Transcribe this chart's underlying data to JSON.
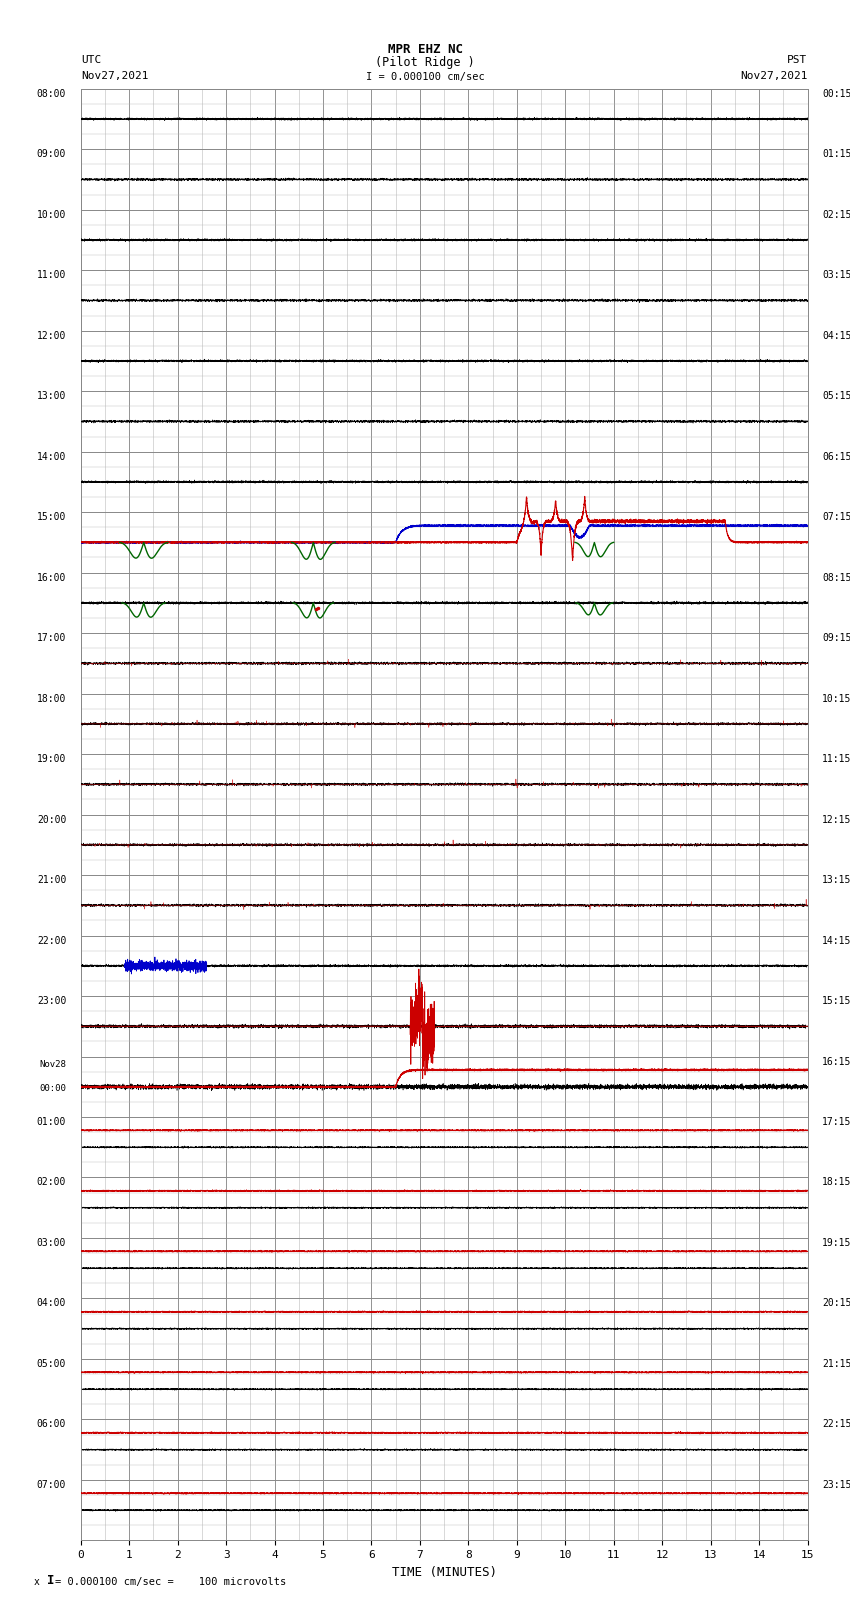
{
  "title_line1": "MPR EHZ NC",
  "title_line2": "(Pilot Ridge )",
  "title_line3": "I = 0.000100 cm/sec",
  "left_header_line1": "UTC",
  "left_header_line2": "Nov27,2021",
  "right_header_line1": "PST",
  "right_header_line2": "Nov27,2021",
  "footer_text": "= 0.000100 cm/sec =    100 microvolts",
  "xlabel": "TIME (MINUTES)",
  "left_time_labels": [
    "08:00",
    "09:00",
    "10:00",
    "11:00",
    "12:00",
    "13:00",
    "14:00",
    "15:00",
    "16:00",
    "17:00",
    "18:00",
    "19:00",
    "20:00",
    "21:00",
    "22:00",
    "23:00",
    "Nov28\n00:00",
    "01:00",
    "02:00",
    "03:00",
    "04:00",
    "05:00",
    "06:00",
    "07:00"
  ],
  "right_time_labels": [
    "00:15",
    "01:15",
    "02:15",
    "03:15",
    "04:15",
    "05:15",
    "06:15",
    "07:15",
    "08:15",
    "09:15",
    "10:15",
    "11:15",
    "12:15",
    "13:15",
    "14:15",
    "15:15",
    "16:15",
    "17:15",
    "18:15",
    "19:15",
    "20:15",
    "21:15",
    "22:15",
    "23:15"
  ],
  "num_rows": 24,
  "x_min": 0,
  "x_max": 15,
  "x_ticks": [
    0,
    1,
    2,
    3,
    4,
    5,
    6,
    7,
    8,
    9,
    10,
    11,
    12,
    13,
    14,
    15
  ],
  "bg_color": "#ffffff",
  "grid_color": "#888888",
  "grid_minor_color": "#bbbbbb",
  "trace_color_black": "#000000",
  "trace_color_blue": "#0000cc",
  "trace_color_red": "#cc0000",
  "trace_color_green": "#006600",
  "fig_width": 8.5,
  "fig_height": 16.13
}
